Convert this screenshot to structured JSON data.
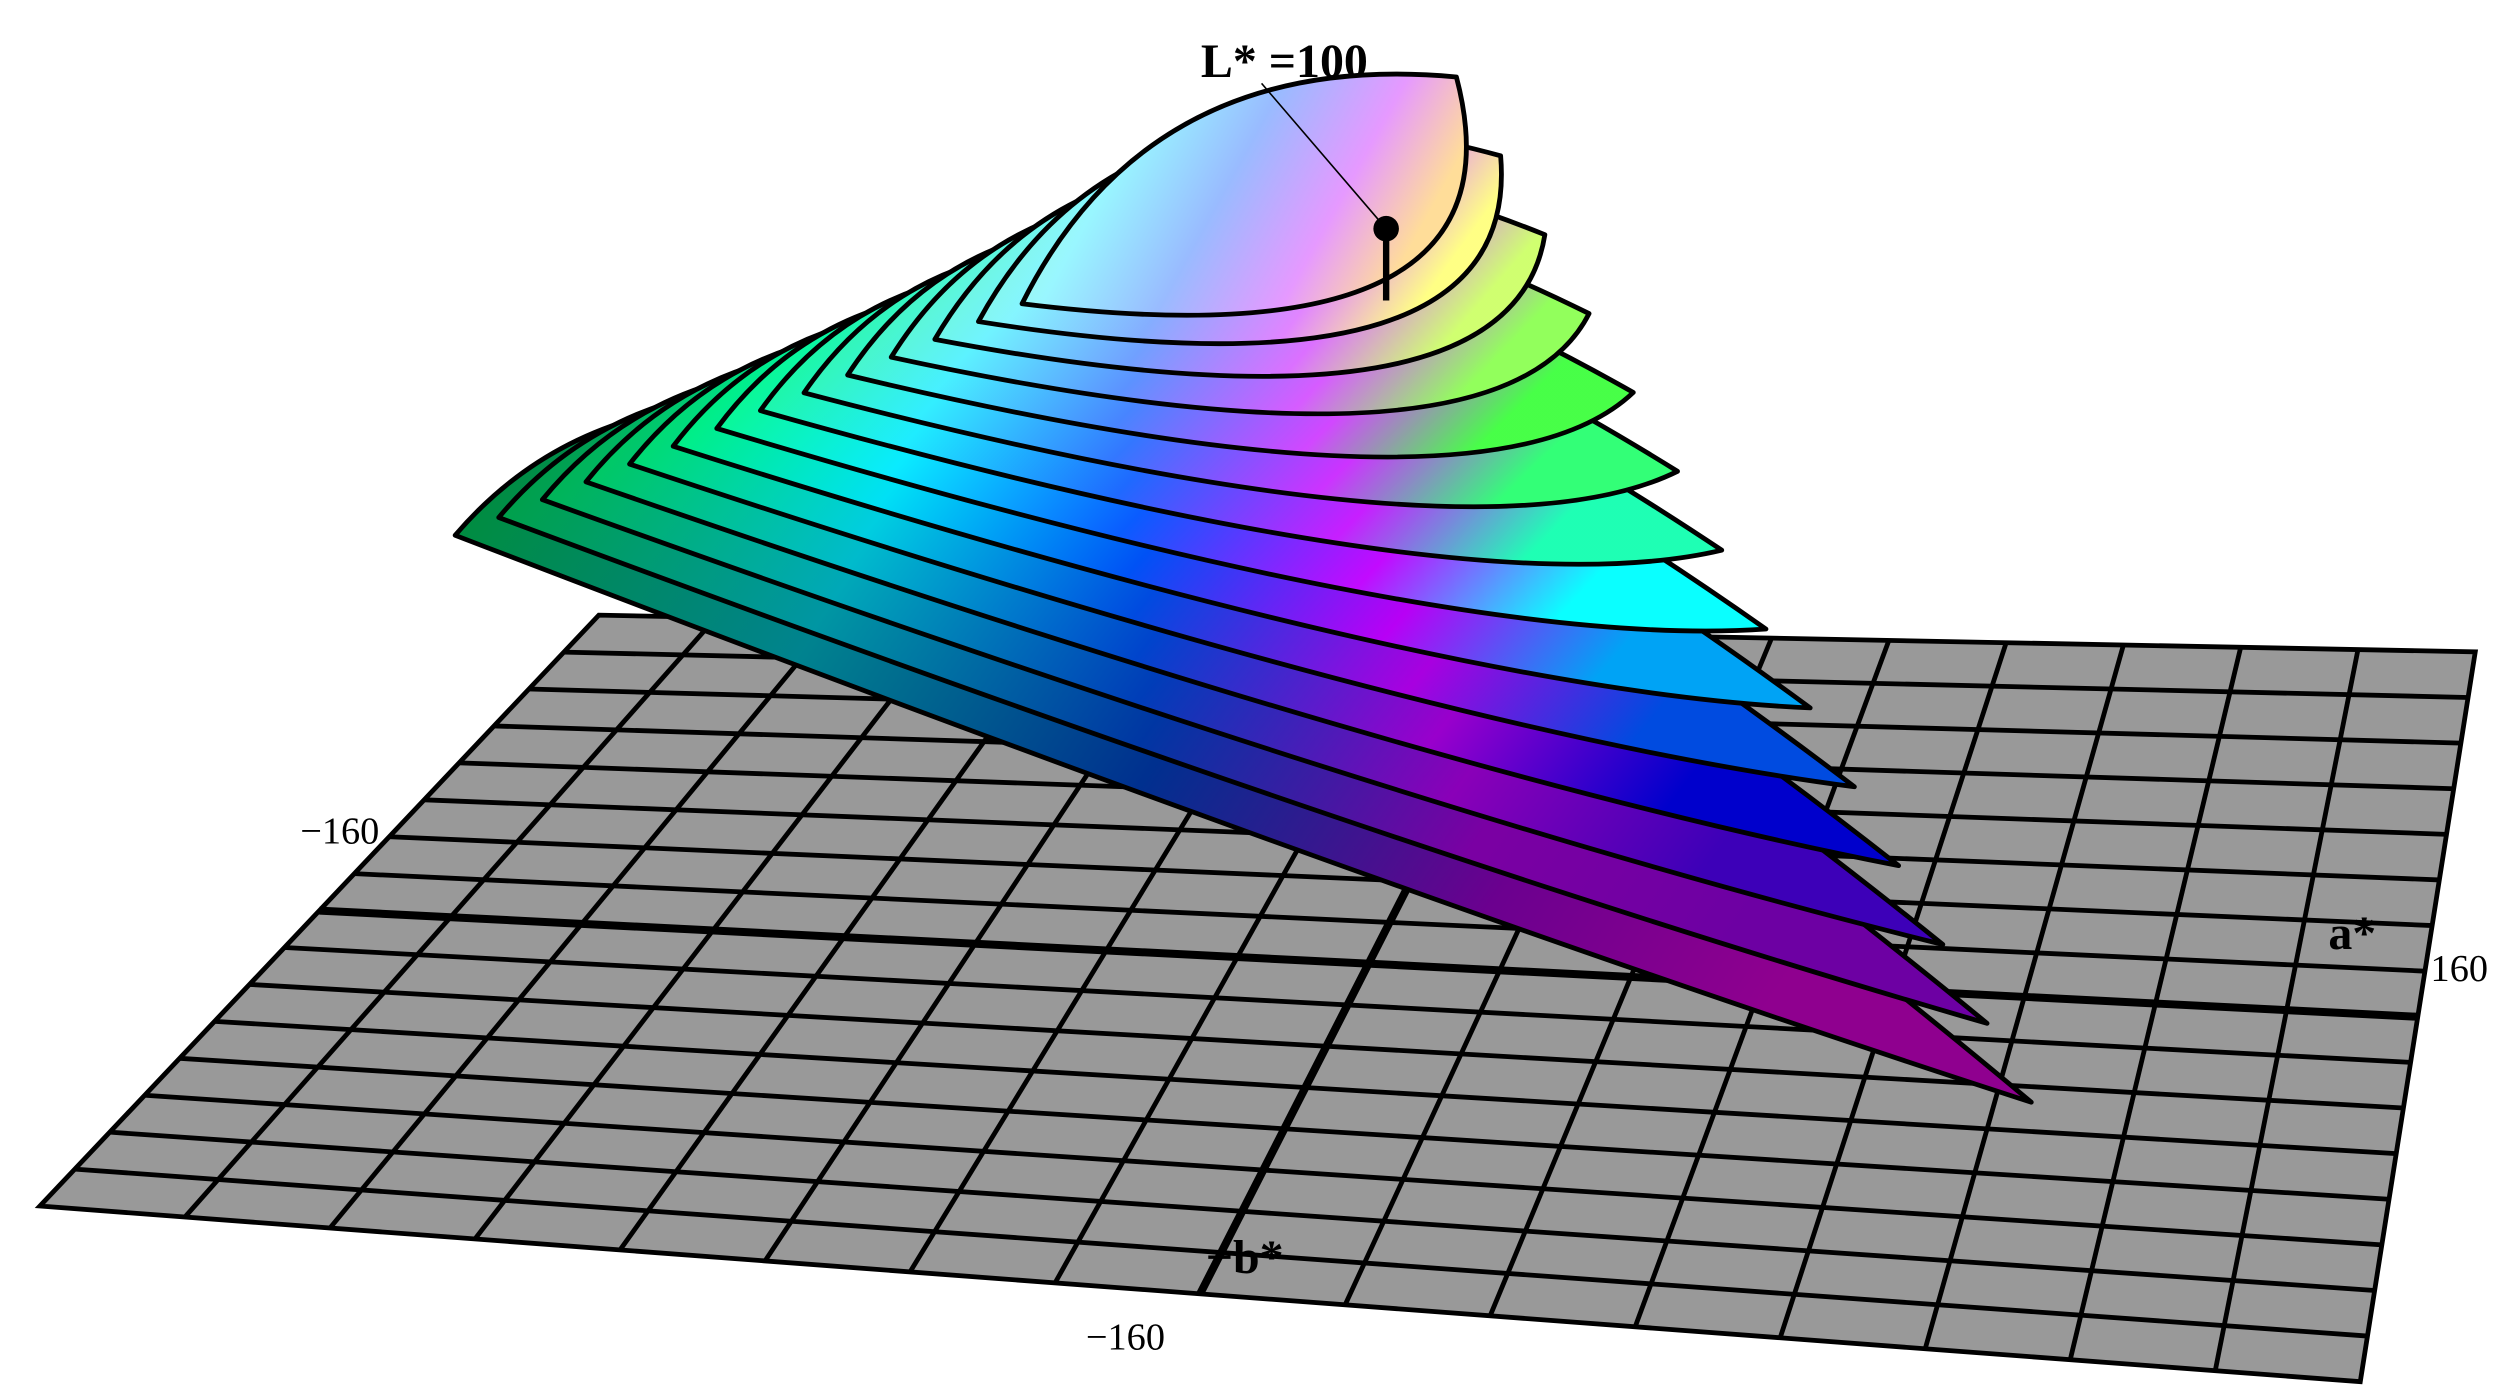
{
  "labels": {
    "lightness": "L* =100",
    "a_axis": "a*",
    "b_axis": "−b*",
    "a_min": "−160",
    "a_max": "160",
    "b_min": "−160"
  }
}
